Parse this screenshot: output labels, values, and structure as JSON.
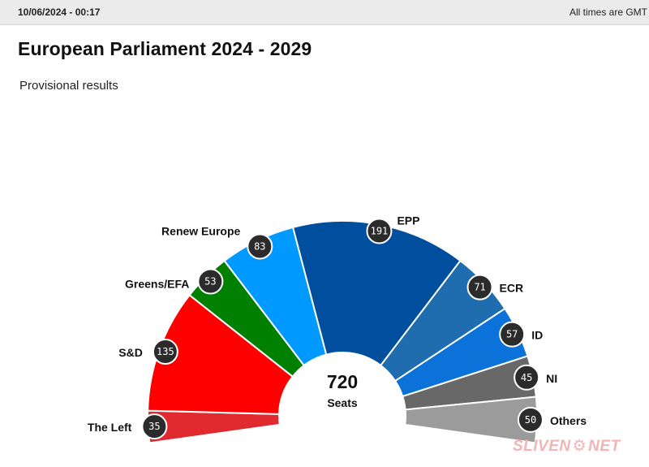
{
  "header": {
    "timestamp": "10/06/2024 - 00:17",
    "timezone_note": "All times are GMT"
  },
  "page": {
    "title": "European Parliament 2024 - 2029",
    "subtitle": "Provisional results"
  },
  "watermark": {
    "text_left": "SLIVEN",
    "text_right": "NET"
  },
  "chart_data": {
    "type": "hemicycle",
    "title": "European Parliament 2024 - 2029",
    "subtitle": "Provisional results",
    "total": 720,
    "total_label": "Seats",
    "parties": [
      {
        "name": "The Left",
        "seats": 35,
        "color": "#e02a2f"
      },
      {
        "name": "S&D",
        "seats": 135,
        "color": "#ff0000"
      },
      {
        "name": "Greens/EFA",
        "seats": 53,
        "color": "#008000"
      },
      {
        "name": "Renew Europe",
        "seats": 83,
        "color": "#0099ff"
      },
      {
        "name": "EPP",
        "seats": 191,
        "color": "#004f9f"
      },
      {
        "name": "ECR",
        "seats": 71,
        "color": "#1f6cae"
      },
      {
        "name": "ID",
        "seats": 57,
        "color": "#0a72d8"
      },
      {
        "name": "NI",
        "seats": 45,
        "color": "#686868"
      },
      {
        "name": "Others",
        "seats": 50,
        "color": "#9b9b9b"
      }
    ]
  }
}
